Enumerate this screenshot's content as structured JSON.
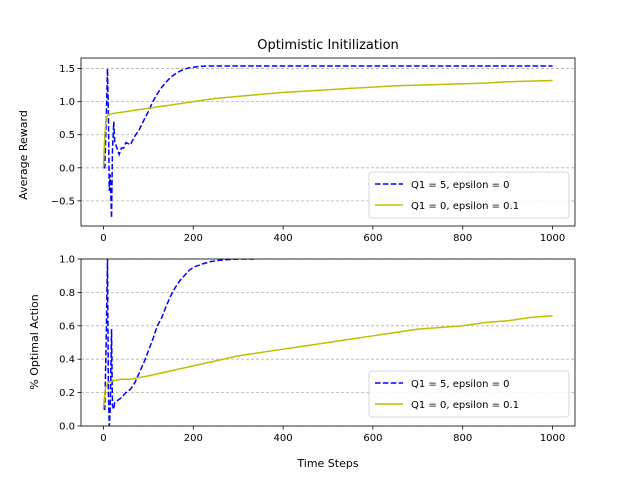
{
  "colors": {
    "series_blue": "#0000ff",
    "series_yellow": "#bfbf00",
    "grid": "#b0b0b0"
  },
  "chart_data": [
    {
      "type": "line",
      "title": "Optimistic Initilization",
      "xlabel": "",
      "ylabel": "Average Reward",
      "xlim": [
        -50,
        1050
      ],
      "ylim": [
        -0.88,
        1.66
      ],
      "xticks": [
        0,
        200,
        400,
        600,
        800,
        1000
      ],
      "xtick_labels": [
        "0",
        "200",
        "400",
        "600",
        "800",
        "1000"
      ],
      "yticks": [
        -0.5,
        0.0,
        0.5,
        1.0,
        1.5
      ],
      "ytick_labels": [
        "−0.5",
        "0.0",
        "0.5",
        "1.0",
        "1.5"
      ],
      "grid": "y-dashed",
      "legend_position": "lower-right",
      "series": [
        {
          "name": "Q1 = 5, epsilon = 0",
          "style": "dashed",
          "color_key": "series_blue",
          "x": [
            0,
            3,
            6,
            9,
            11,
            13,
            15,
            18,
            20,
            23,
            25,
            30,
            35,
            40,
            45,
            50,
            60,
            70,
            80,
            90,
            100,
            110,
            120,
            130,
            140,
            150,
            160,
            170,
            180,
            190,
            200,
            210,
            220,
            240,
            260,
            300,
            400,
            500,
            600,
            700,
            800,
            900,
            1000
          ],
          "y": [
            0.0,
            0.0,
            0.7,
            1.5,
            0.8,
            -0.35,
            -0.1,
            -0.76,
            0.25,
            0.7,
            0.4,
            0.3,
            0.2,
            0.3,
            0.3,
            0.38,
            0.35,
            0.48,
            0.58,
            0.72,
            0.85,
            1.0,
            1.12,
            1.22,
            1.3,
            1.37,
            1.42,
            1.46,
            1.49,
            1.51,
            1.52,
            1.53,
            1.535,
            1.54,
            1.54,
            1.54,
            1.54,
            1.54,
            1.54,
            1.54,
            1.54,
            1.54,
            1.54
          ]
        },
        {
          "name": "Q1 = 0, epsilon = 0.1",
          "style": "solid",
          "color_key": "series_yellow",
          "x": [
            0,
            3,
            6,
            10,
            20,
            40,
            60,
            80,
            100,
            150,
            200,
            250,
            300,
            350,
            400,
            450,
            500,
            550,
            600,
            650,
            700,
            750,
            800,
            850,
            900,
            950,
            1000
          ],
          "y": [
            0.0,
            0.5,
            0.75,
            0.8,
            0.82,
            0.84,
            0.86,
            0.88,
            0.9,
            0.95,
            1.0,
            1.05,
            1.08,
            1.11,
            1.14,
            1.16,
            1.18,
            1.2,
            1.22,
            1.24,
            1.25,
            1.26,
            1.27,
            1.28,
            1.3,
            1.31,
            1.32
          ]
        }
      ]
    },
    {
      "type": "line",
      "title": "",
      "xlabel": "Time Steps",
      "ylabel": "% Optimal Action",
      "xlim": [
        -50,
        1050
      ],
      "ylim": [
        0.0,
        1.0
      ],
      "xticks": [
        0,
        200,
        400,
        600,
        800,
        1000
      ],
      "xtick_labels": [
        "0",
        "200",
        "400",
        "600",
        "800",
        "1000"
      ],
      "yticks": [
        0.0,
        0.2,
        0.4,
        0.6,
        0.8,
        1.0
      ],
      "ytick_labels": [
        "0.0",
        "0.2",
        "0.4",
        "0.6",
        "0.8",
        "1.0"
      ],
      "grid": "y-dashed",
      "legend_position": "lower-right",
      "series": [
        {
          "name": "Q1 = 5, epsilon = 0",
          "style": "dashed",
          "color_key": "series_blue",
          "x": [
            0,
            3,
            6,
            9,
            11,
            13,
            15,
            18,
            20,
            23,
            25,
            30,
            40,
            50,
            60,
            70,
            80,
            90,
            100,
            110,
            120,
            130,
            140,
            150,
            160,
            170,
            180,
            190,
            200,
            220,
            240,
            260,
            280,
            300,
            320,
            340
          ],
          "y": [
            0.1,
            0.1,
            0.5,
            1.0,
            0.2,
            0.0,
            0.1,
            0.58,
            0.12,
            0.1,
            0.14,
            0.15,
            0.17,
            0.2,
            0.22,
            0.26,
            0.32,
            0.38,
            0.45,
            0.52,
            0.6,
            0.65,
            0.72,
            0.78,
            0.83,
            0.87,
            0.9,
            0.93,
            0.95,
            0.97,
            0.985,
            0.993,
            0.997,
            1.0,
            1.0,
            1.0
          ]
        },
        {
          "name": "Q1 = 0, epsilon = 0.1",
          "style": "solid",
          "color_key": "series_yellow",
          "x": [
            0,
            3,
            6,
            10,
            20,
            40,
            60,
            80,
            100,
            150,
            200,
            250,
            300,
            350,
            400,
            450,
            500,
            550,
            600,
            650,
            700,
            750,
            800,
            850,
            900,
            950,
            1000
          ],
          "y": [
            0.1,
            0.2,
            0.24,
            0.26,
            0.27,
            0.28,
            0.28,
            0.29,
            0.3,
            0.33,
            0.36,
            0.39,
            0.42,
            0.44,
            0.46,
            0.48,
            0.5,
            0.52,
            0.54,
            0.56,
            0.58,
            0.59,
            0.6,
            0.62,
            0.63,
            0.65,
            0.66
          ]
        }
      ]
    }
  ]
}
